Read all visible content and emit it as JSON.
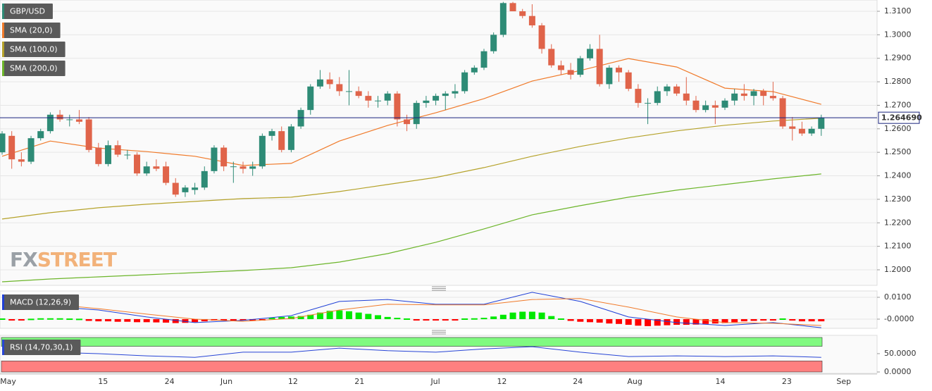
{
  "chart_data": [
    {
      "type": "candlestick",
      "name": "GBP/USD",
      "categories": [
        null,
        "May",
        null,
        null,
        null,
        null,
        null,
        null,
        null,
        null,
        null,
        "15",
        null,
        null,
        null,
        null,
        null,
        null,
        "24",
        null,
        null,
        null,
        null,
        null,
        "Jun",
        null,
        null,
        null,
        null,
        null,
        null,
        "12",
        null,
        null,
        null,
        null,
        null,
        null,
        "21",
        null,
        null,
        null,
        null,
        null,
        null,
        null,
        "Jul",
        null,
        null,
        null,
        null,
        null,
        null,
        "12",
        null,
        null,
        null,
        null,
        null,
        null,
        null,
        "24",
        null,
        null,
        null,
        null,
        null,
        "Aug",
        null,
        null,
        null,
        null,
        null,
        null,
        null,
        null,
        "14",
        null,
        null,
        null,
        null,
        null,
        null,
        "23",
        null,
        null,
        null,
        null,
        null,
        "Sep"
      ],
      "open": [
        1.25,
        1.257,
        1.247,
        1.246,
        1.256,
        1.259,
        1.266,
        1.264,
        1.264,
        1.264,
        1.252,
        1.245,
        1.253,
        1.249,
        1.249,
        1.241,
        1.244,
        1.244,
        1.237,
        1.233,
        1.234,
        1.235,
        1.242,
        1.252,
        1.244,
        1.244,
        1.243,
        1.244,
        1.257,
        1.259,
        1.251,
        1.261,
        1.268,
        1.278,
        1.281,
        1.279,
        1.276,
        1.276,
        1.274,
        1.272,
        1.272,
        1.275,
        1.264,
        1.262,
        1.271,
        1.272,
        1.274,
        1.275,
        1.276,
        1.284,
        1.286,
        1.293,
        1.3,
        1.3135,
        1.31,
        1.308,
        1.304,
        1.294,
        1.287,
        1.285,
        1.283,
        1.29,
        1.294,
        1.279,
        1.286,
        1.284,
        1.277,
        1.271,
        1.271,
        1.276,
        1.278,
        1.275,
        1.272,
        1.268,
        1.27,
        1.269,
        1.272,
        1.275,
        1.274,
        1.276,
        1.274,
        1.273,
        1.261,
        1.26,
        1.258,
        1.26,
        null,
        null,
        null,
        null
      ],
      "high": [
        1.259,
        1.259,
        1.25,
        1.257,
        1.26,
        1.267,
        1.268,
        1.266,
        1.268,
        1.265,
        1.254,
        1.255,
        1.255,
        1.251,
        1.25,
        1.246,
        1.247,
        1.246,
        1.239,
        1.236,
        1.237,
        1.244,
        1.253,
        1.253,
        1.246,
        1.246,
        1.246,
        1.258,
        1.26,
        1.261,
        1.262,
        1.269,
        1.279,
        1.285,
        1.284,
        1.282,
        1.285,
        1.278,
        1.276,
        1.274,
        1.276,
        1.276,
        1.266,
        1.272,
        1.274,
        1.275,
        1.276,
        1.279,
        1.285,
        1.287,
        1.294,
        1.301,
        1.314,
        1.314,
        1.311,
        1.313,
        1.305,
        1.296,
        1.289,
        1.288,
        1.291,
        1.296,
        1.3,
        1.287,
        1.287,
        1.285,
        1.279,
        1.273,
        1.278,
        1.279,
        1.279,
        1.282,
        1.274,
        1.272,
        1.272,
        1.273,
        1.277,
        1.279,
        1.277,
        1.277,
        1.28,
        1.274,
        1.265,
        1.263,
        1.261,
        1.266,
        null,
        null,
        null,
        null
      ],
      "low": [
        1.249,
        1.243,
        1.244,
        1.245,
        1.255,
        1.258,
        1.263,
        1.261,
        1.262,
        1.25,
        1.244,
        1.244,
        1.248,
        1.247,
        1.24,
        1.24,
        1.242,
        1.236,
        1.231,
        1.231,
        1.232,
        1.234,
        1.241,
        1.242,
        1.237,
        1.241,
        1.24,
        1.243,
        1.255,
        1.25,
        1.25,
        1.26,
        1.266,
        1.277,
        1.277,
        1.274,
        1.27,
        1.273,
        1.269,
        1.269,
        1.27,
        1.261,
        1.259,
        1.26,
        1.269,
        1.27,
        1.268,
        1.273,
        1.275,
        1.283,
        1.285,
        1.292,
        1.299,
        1.31,
        1.307,
        1.303,
        1.292,
        1.286,
        1.283,
        1.281,
        1.282,
        1.289,
        1.278,
        1.277,
        1.28,
        1.276,
        1.269,
        1.262,
        1.27,
        1.274,
        1.274,
        1.27,
        1.267,
        1.267,
        1.262,
        1.268,
        1.27,
        1.272,
        1.27,
        1.27,
        1.272,
        1.26,
        1.255,
        1.257,
        1.257,
        1.257,
        null,
        null,
        null,
        null
      ],
      "close": [
        1.258,
        1.247,
        1.246,
        1.256,
        1.259,
        1.266,
        1.264,
        1.264,
        1.263,
        1.251,
        1.245,
        1.253,
        1.249,
        1.249,
        1.241,
        1.244,
        1.243,
        1.237,
        1.232,
        1.235,
        1.235,
        1.242,
        1.252,
        1.244,
        1.244,
        1.243,
        1.244,
        1.257,
        1.259,
        1.251,
        1.261,
        1.268,
        1.278,
        1.281,
        1.279,
        1.276,
        1.276,
        1.274,
        1.272,
        1.272,
        1.275,
        1.264,
        1.262,
        1.271,
        1.272,
        1.274,
        1.275,
        1.276,
        1.284,
        1.286,
        1.293,
        1.3,
        1.3135,
        1.31,
        1.308,
        1.304,
        1.294,
        1.287,
        1.285,
        1.283,
        1.29,
        1.294,
        1.279,
        1.286,
        1.284,
        1.277,
        1.271,
        1.271,
        1.276,
        1.278,
        1.275,
        1.272,
        1.268,
        1.27,
        1.269,
        1.272,
        1.275,
        1.274,
        1.276,
        1.274,
        1.273,
        1.261,
        1.26,
        1.258,
        1.26,
        1.2647,
        null,
        null,
        null,
        null
      ],
      "color_up": "#2e8b76",
      "color_down": "#e0644a",
      "color": "#2e8b76",
      "series": [
        {
          "name": "SMA (20,0)",
          "color": "#f07a2a",
          "x": [
            0,
            5,
            10,
            15,
            20,
            25,
            30,
            35,
            40,
            45,
            50,
            55,
            60,
            65,
            70,
            75,
            80,
            85
          ],
          "values": [
            1.2483,
            1.2548,
            1.2518,
            1.2503,
            1.2483,
            1.2444,
            1.2453,
            1.2548,
            1.2614,
            1.2668,
            1.2728,
            1.2803,
            1.2848,
            1.2899,
            1.2863,
            1.2773,
            1.2758,
            1.2704
          ]
        },
        {
          "name": "SMA (100,0)",
          "color": "#b5a22a",
          "x": [
            0,
            5,
            10,
            15,
            20,
            25,
            30,
            35,
            40,
            45,
            50,
            55,
            60,
            65,
            70,
            75,
            80,
            85
          ],
          "values": [
            1.2216,
            1.2243,
            1.2264,
            1.2279,
            1.2291,
            1.2303,
            1.2309,
            1.2333,
            1.2363,
            1.2393,
            1.2435,
            1.2483,
            1.2525,
            1.2561,
            1.2591,
            1.2615,
            1.2633,
            1.2645
          ]
        },
        {
          "name": "SMA (200,0)",
          "color": "#6cb52a",
          "x": [
            0,
            5,
            10,
            15,
            20,
            25,
            30,
            35,
            40,
            45,
            50,
            55,
            60,
            65,
            70,
            75,
            80,
            85
          ],
          "values": [
            1.1949,
            1.1961,
            1.197,
            1.1979,
            1.1988,
            1.1997,
            1.2009,
            1.2033,
            1.2069,
            1.2117,
            1.2174,
            1.2234,
            1.2273,
            1.2309,
            1.2339,
            1.2363,
            1.2387,
            1.2408
          ]
        }
      ],
      "last_price": {
        "value": 1.26469,
        "label": "1.264690"
      },
      "last_price_color": "#1a237e",
      "ylim": [
        1.1934,
        1.3148
      ],
      "yticks": [
        {
          "value": 1.31,
          "label": "1.3100"
        },
        {
          "value": 1.3,
          "label": "1.3000"
        },
        {
          "value": 1.29,
          "label": "1.2900"
        },
        {
          "value": 1.28,
          "label": "1.2800"
        },
        {
          "value": 1.27,
          "label": "1.2700"
        },
        {
          "value": 1.26,
          "label": "1.2600"
        },
        {
          "value": 1.25,
          "label": "1.2500"
        },
        {
          "value": 1.24,
          "label": "1.2400"
        },
        {
          "value": 1.23,
          "label": "1.2300"
        },
        {
          "value": 1.22,
          "label": "1.2200"
        },
        {
          "value": 1.21,
          "label": "1.2100"
        },
        {
          "value": 1.2,
          "label": "1.2000"
        }
      ],
      "grid": true,
      "watermark": [
        "FX",
        "STREET"
      ]
    },
    {
      "type": "macd",
      "name": "MACD (12,26,9)",
      "color": "#1f3fd6",
      "histogram": [
        0,
        -0.0002,
        -0.0002,
        0.0002,
        0.0004,
        0.0004,
        0.0004,
        0.0003,
        0.0002,
        -0.0008,
        -0.001,
        -0.001,
        -0.0012,
        -0.0012,
        -0.0014,
        -0.0014,
        -0.0015,
        -0.0016,
        -0.0018,
        -0.0017,
        -0.0014,
        -0.001,
        -0.0006,
        -0.0003,
        -0.0003,
        -0.0002,
        -0.0002,
        -0.0001,
        0.0006,
        0.001,
        0.0012,
        0.0014,
        0.002,
        0.003,
        0.0038,
        0.004,
        0.0036,
        0.003,
        0.0024,
        0.0018,
        0.001,
        0.0006,
        0,
        -0.0006,
        -0.0006,
        -0.0005,
        -0.0004,
        -0.0002,
        0,
        0.0004,
        0.0006,
        0.0012,
        0.002,
        0.003,
        0.0034,
        0.0034,
        0.003,
        0.0014,
        0,
        -0.0008,
        -0.0012,
        -0.0014,
        -0.0016,
        -0.002,
        -0.0022,
        -0.0026,
        -0.003,
        -0.0032,
        -0.003,
        -0.0028,
        -0.0026,
        -0.0026,
        -0.0025,
        -0.0022,
        -0.002,
        -0.0018,
        -0.0014,
        -0.001,
        -0.0008,
        -0.0004,
        -0.0002,
        0,
        -0.0006,
        -0.001,
        -0.001,
        -0.001
      ],
      "histogram_up": "#00e800",
      "histogram_down": "#ff0000",
      "series": [
        {
          "color": "#1f3fd6",
          "x": [
            0,
            5,
            10,
            15,
            20,
            25,
            30,
            35,
            40,
            45,
            50,
            55,
            60,
            65,
            70,
            75,
            80,
            85
          ],
          "values": [
            0.0081,
            0.0058,
            0.0042,
            0.001,
            -0.0016,
            -0.0006,
            0.0016,
            0.0081,
            0.009,
            0.0068,
            0.0068,
            0.0123,
            0.0081,
            0.001,
            -0.0016,
            -0.0029,
            -0.0016,
            -0.0039
          ]
        },
        {
          "color": "#f07a2a",
          "x": [
            0,
            5,
            10,
            15,
            20,
            25,
            30,
            35,
            40,
            45,
            50,
            55,
            60,
            65,
            70,
            75,
            80,
            85
          ],
          "values": [
            0.0081,
            0.0068,
            0.0048,
            0.0023,
            0,
            -0.001,
            0.0003,
            0.0042,
            0.0068,
            0.0065,
            0.0065,
            0.009,
            0.0094,
            0.0055,
            0.001,
            -0.0016,
            -0.0019,
            -0.0029
          ]
        }
      ],
      "ylim": [
        -0.0042,
        0.0129
      ],
      "yticks": [
        {
          "value": 0.01,
          "label": "0.0100"
        },
        {
          "value": 0,
          "label": "-0.0000"
        }
      ]
    },
    {
      "type": "rsi",
      "name": "RSI (14,70,30,1)",
      "color": "#2845d6",
      "overbought": 70,
      "oversold": 30,
      "overbought_color": "#80fa80",
      "oversold_color": "#ff8080",
      "series": [
        {
          "color": "#2845d6",
          "x": [
            0,
            5,
            10,
            15,
            20,
            25,
            30,
            35,
            40,
            45,
            50,
            55,
            60,
            65,
            70,
            75,
            80,
            85
          ],
          "values": [
            59.6,
            53.8,
            50,
            44,
            40,
            54,
            54,
            65,
            58,
            54,
            63,
            69,
            54,
            42,
            44,
            42,
            44,
            40
          ]
        }
      ],
      "ylim": [
        0,
        96
      ],
      "yticks": [
        {
          "value": 50,
          "label": "50.0000"
        },
        {
          "value": 0,
          "label": "0.0000"
        }
      ]
    }
  ]
}
